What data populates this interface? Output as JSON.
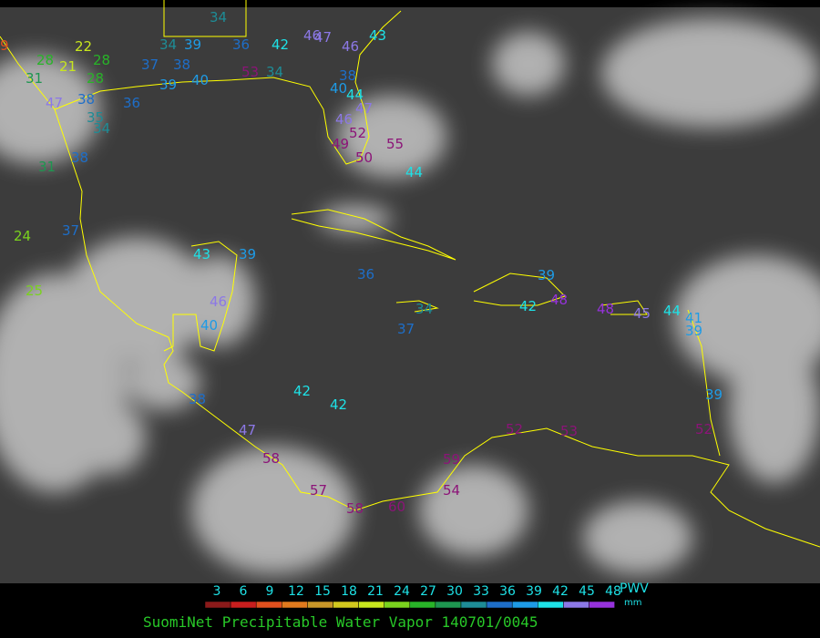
{
  "map": {
    "station_values": [
      9,
      22,
      21,
      28,
      28,
      28,
      31,
      37,
      34,
      39,
      38,
      36,
      42,
      46,
      47,
      46,
      43,
      34,
      39,
      40,
      53,
      34,
      38,
      47,
      38,
      36,
      35,
      34,
      40,
      44,
      47,
      46,
      52,
      55,
      49,
      50,
      44,
      31,
      38,
      37,
      24,
      25,
      43,
      39,
      36,
      39,
      48,
      42,
      34,
      37,
      46,
      40,
      48,
      45,
      44,
      41,
      39,
      38,
      42,
      42,
      47,
      58,
      52,
      53,
      52,
      39,
      59,
      54,
      57,
      58,
      60
    ]
  },
  "legend": {
    "ticks": [
      3,
      6,
      9,
      12,
      15,
      18,
      21,
      24,
      27,
      30,
      33,
      36,
      39,
      42,
      45,
      48
    ],
    "colors": [
      "#8b1a1a",
      "#c81e1e",
      "#e0501e",
      "#e07a1e",
      "#c89628",
      "#d2c81e",
      "#c8e61e",
      "#7ad21e",
      "#28b428",
      "#1e9650",
      "#1e8c96",
      "#1e6ec8",
      "#1e9be6",
      "#1ee1e6",
      "#8c78e6",
      "#9632dc"
    ],
    "over_color": "#8c1478",
    "unit_title": "PWV",
    "unit": "mm"
  },
  "caption": "SuomiNet Precipitable Water Vapor 140701/0045"
}
